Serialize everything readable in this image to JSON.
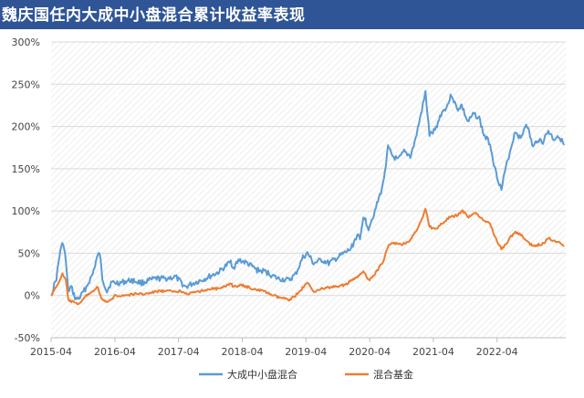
{
  "chart_data": {
    "type": "line",
    "title": "魏庆国任内大成中小盘混合累计收益率表现",
    "xlabel": "",
    "ylabel": "",
    "x_tick_labels": [
      "2015-04",
      "2016-04",
      "2017-04",
      "2018-04",
      "2019-04",
      "2020-04",
      "2021-04",
      "2022-04"
    ],
    "y_tick_labels": [
      "-50%",
      "0%",
      "50%",
      "100%",
      "150%",
      "200%",
      "250%",
      "300%"
    ],
    "ylim": [
      -50,
      300
    ],
    "xlim": [
      "2015-04-01",
      "2023-04-30"
    ],
    "grid": "horizontal",
    "legend_position": "bottom",
    "series": [
      {
        "name": "大成中小盘混合",
        "color": "#5b9bd5",
        "points": [
          [
            "2015-04-01",
            0
          ],
          [
            "2015-05-01",
            20
          ],
          [
            "2015-05-25",
            55
          ],
          [
            "2015-06-10",
            62
          ],
          [
            "2015-06-25",
            40
          ],
          [
            "2015-07-08",
            5
          ],
          [
            "2015-07-25",
            10
          ],
          [
            "2015-08-20",
            -5
          ],
          [
            "2015-09-15",
            -2
          ],
          [
            "2015-10-20",
            10
          ],
          [
            "2015-11-25",
            25
          ],
          [
            "2015-12-20",
            45
          ],
          [
            "2016-01-05",
            50
          ],
          [
            "2016-01-20",
            20
          ],
          [
            "2016-02-15",
            5
          ],
          [
            "2016-03-10",
            15
          ],
          [
            "2016-05-01",
            15
          ],
          [
            "2016-07-01",
            18
          ],
          [
            "2016-09-01",
            15
          ],
          [
            "2016-11-20",
            20
          ],
          [
            "2017-01-15",
            20
          ],
          [
            "2017-03-15",
            22
          ],
          [
            "2017-05-10",
            10
          ],
          [
            "2017-07-01",
            15
          ],
          [
            "2017-09-01",
            20
          ],
          [
            "2017-11-20",
            28
          ],
          [
            "2018-01-25",
            40
          ],
          [
            "2018-02-10",
            33
          ],
          [
            "2018-03-15",
            42
          ],
          [
            "2018-05-01",
            38
          ],
          [
            "2018-06-25",
            30
          ],
          [
            "2018-08-15",
            28
          ],
          [
            "2018-10-20",
            20
          ],
          [
            "2018-12-25",
            18
          ],
          [
            "2019-02-01",
            25
          ],
          [
            "2019-03-15",
            45
          ],
          [
            "2019-04-10",
            50
          ],
          [
            "2019-05-15",
            38
          ],
          [
            "2019-07-01",
            42
          ],
          [
            "2019-08-10",
            38
          ],
          [
            "2019-10-01",
            45
          ],
          [
            "2019-12-15",
            55
          ],
          [
            "2020-01-20",
            72
          ],
          [
            "2020-02-05",
            65
          ],
          [
            "2020-02-25",
            95
          ],
          [
            "2020-03-25",
            80
          ],
          [
            "2020-05-01",
            100
          ],
          [
            "2020-06-15",
            130
          ],
          [
            "2020-07-15",
            175
          ],
          [
            "2020-08-10",
            165
          ],
          [
            "2020-09-10",
            160
          ],
          [
            "2020-10-15",
            170
          ],
          [
            "2020-11-20",
            165
          ],
          [
            "2020-12-20",
            185
          ],
          [
            "2021-01-20",
            215
          ],
          [
            "2021-02-15",
            240
          ],
          [
            "2021-03-10",
            190
          ],
          [
            "2021-04-10",
            195
          ],
          [
            "2021-05-15",
            215
          ],
          [
            "2021-06-20",
            225
          ],
          [
            "2021-07-15",
            238
          ],
          [
            "2021-08-15",
            220
          ],
          [
            "2021-09-10",
            225
          ],
          [
            "2021-10-15",
            205
          ],
          [
            "2021-11-20",
            215
          ],
          [
            "2021-12-20",
            210
          ],
          [
            "2022-01-15",
            190
          ],
          [
            "2022-02-20",
            180
          ],
          [
            "2022-03-20",
            150
          ],
          [
            "2022-04-26",
            125
          ],
          [
            "2022-05-20",
            150
          ],
          [
            "2022-06-20",
            175
          ],
          [
            "2022-07-15",
            195
          ],
          [
            "2022-08-15",
            185
          ],
          [
            "2022-09-15",
            205
          ],
          [
            "2022-10-25",
            175
          ],
          [
            "2022-11-20",
            185
          ],
          [
            "2022-12-20",
            182
          ],
          [
            "2023-01-20",
            195
          ],
          [
            "2023-02-20",
            185
          ],
          [
            "2023-03-20",
            190
          ],
          [
            "2023-04-20",
            178
          ]
        ]
      },
      {
        "name": "混合基金",
        "color": "#ed7d31",
        "points": [
          [
            "2015-04-01",
            0
          ],
          [
            "2015-05-01",
            10
          ],
          [
            "2015-06-05",
            25
          ],
          [
            "2015-06-25",
            18
          ],
          [
            "2015-07-08",
            -5
          ],
          [
            "2015-08-25",
            -10
          ],
          [
            "2015-09-20",
            -8
          ],
          [
            "2015-10-20",
            0
          ],
          [
            "2015-11-25",
            5
          ],
          [
            "2015-12-25",
            10
          ],
          [
            "2016-01-15",
            -5
          ],
          [
            "2016-02-25",
            -8
          ],
          [
            "2016-04-01",
            0
          ],
          [
            "2016-06-01",
            0
          ],
          [
            "2016-08-01",
            2
          ],
          [
            "2016-10-01",
            2
          ],
          [
            "2016-12-01",
            5
          ],
          [
            "2017-02-01",
            5
          ],
          [
            "2017-04-15",
            5
          ],
          [
            "2017-06-01",
            2
          ],
          [
            "2017-08-01",
            5
          ],
          [
            "2017-10-01",
            8
          ],
          [
            "2017-12-01",
            8
          ],
          [
            "2018-01-25",
            15
          ],
          [
            "2018-02-10",
            10
          ],
          [
            "2018-04-01",
            12
          ],
          [
            "2018-06-01",
            8
          ],
          [
            "2018-08-01",
            5
          ],
          [
            "2018-10-20",
            -2
          ],
          [
            "2018-12-25",
            -5
          ],
          [
            "2019-02-01",
            0
          ],
          [
            "2019-04-10",
            15
          ],
          [
            "2019-05-15",
            5
          ],
          [
            "2019-07-01",
            8
          ],
          [
            "2019-09-01",
            10
          ],
          [
            "2019-11-01",
            12
          ],
          [
            "2020-01-10",
            20
          ],
          [
            "2020-02-25",
            28
          ],
          [
            "2020-03-25",
            18
          ],
          [
            "2020-05-01",
            25
          ],
          [
            "2020-06-15",
            40
          ],
          [
            "2020-07-15",
            58
          ],
          [
            "2020-08-15",
            62
          ],
          [
            "2020-10-01",
            60
          ],
          [
            "2020-11-15",
            65
          ],
          [
            "2020-12-20",
            75
          ],
          [
            "2021-01-20",
            88
          ],
          [
            "2021-02-15",
            102
          ],
          [
            "2021-03-10",
            82
          ],
          [
            "2021-04-10",
            78
          ],
          [
            "2021-05-20",
            85
          ],
          [
            "2021-07-01",
            92
          ],
          [
            "2021-08-15",
            95
          ],
          [
            "2021-09-15",
            100
          ],
          [
            "2021-10-20",
            93
          ],
          [
            "2021-12-01",
            98
          ],
          [
            "2022-01-15",
            88
          ],
          [
            "2022-02-20",
            85
          ],
          [
            "2022-03-20",
            70
          ],
          [
            "2022-04-26",
            55
          ],
          [
            "2022-05-20",
            60
          ],
          [
            "2022-06-20",
            70
          ],
          [
            "2022-07-15",
            75
          ],
          [
            "2022-08-15",
            72
          ],
          [
            "2022-09-15",
            65
          ],
          [
            "2022-10-25",
            58
          ],
          [
            "2022-11-25",
            60
          ],
          [
            "2022-12-25",
            62
          ],
          [
            "2023-01-20",
            68
          ],
          [
            "2023-02-20",
            65
          ],
          [
            "2023-03-20",
            64
          ],
          [
            "2023-04-20",
            58
          ]
        ]
      }
    ]
  }
}
